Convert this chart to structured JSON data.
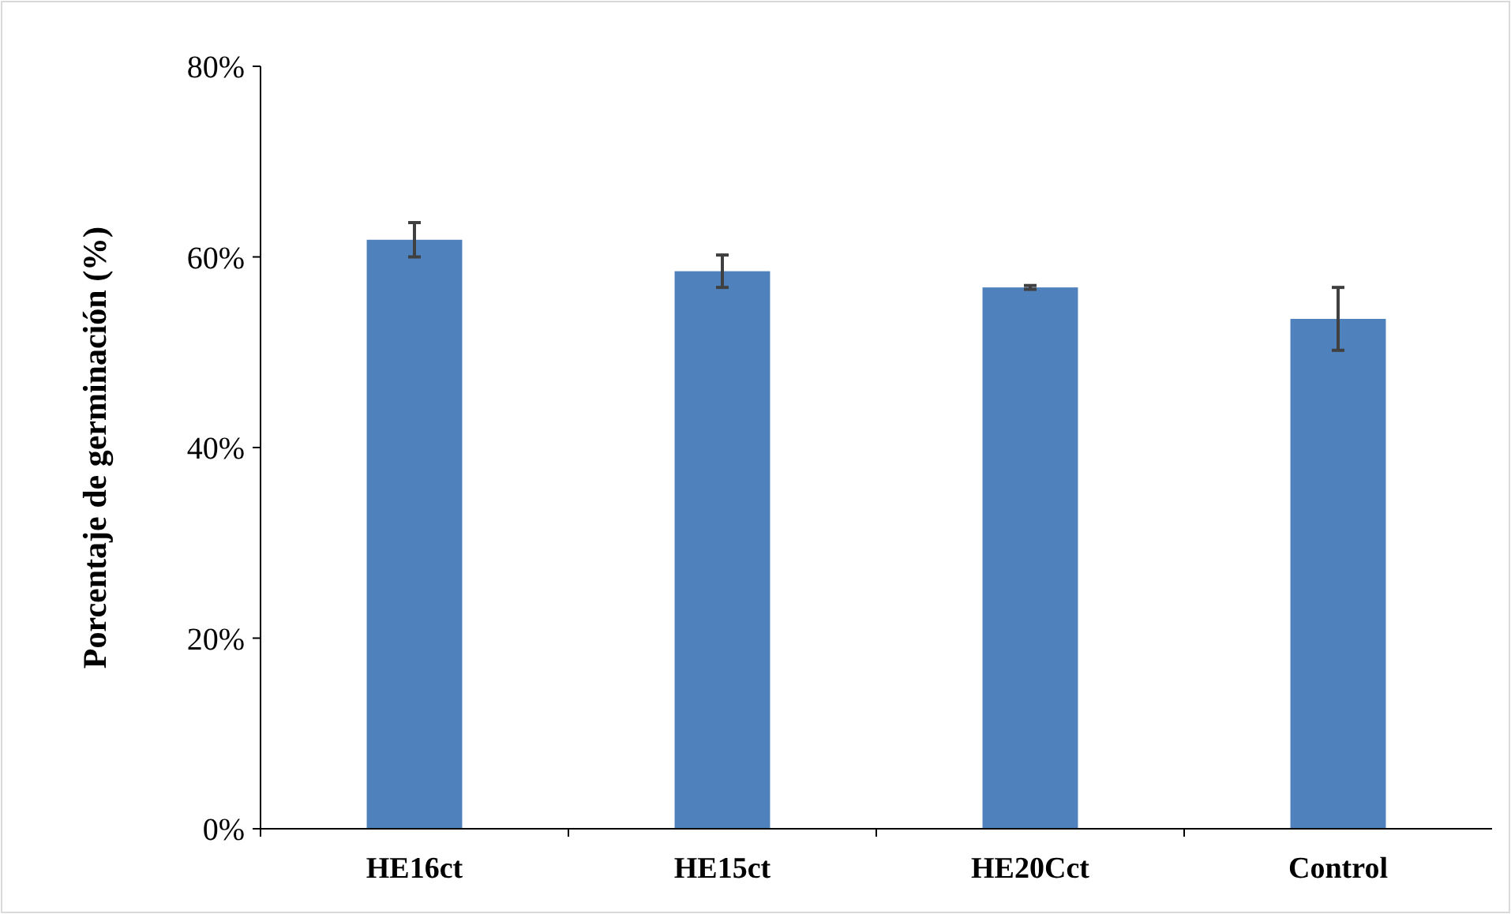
{
  "chart_data": {
    "type": "bar",
    "ylabel": "Porcentaje de germinación (%)",
    "categories": [
      "HE16ct",
      "HE15ct",
      "HE20Cct",
      "Control"
    ],
    "values": [
      61.8,
      58.5,
      56.8,
      53.5
    ],
    "errors": [
      1.8,
      1.7,
      0.2,
      3.3
    ],
    "color": "#4f81bd",
    "ylim": [
      0,
      80
    ],
    "yticks": [
      {
        "value": 0,
        "label": "0%"
      },
      {
        "value": 20,
        "label": "20%"
      },
      {
        "value": 40,
        "label": "40%"
      },
      {
        "value": 60,
        "label": "60%"
      },
      {
        "value": 80,
        "label": "80%"
      }
    ],
    "grid": false
  }
}
